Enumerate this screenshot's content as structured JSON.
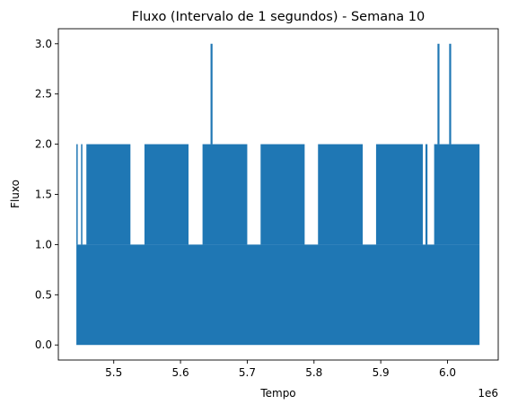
{
  "chart_data": {
    "type": "line",
    "title": "Fluxo (Intervalo de 1 segundos) - Semana 10",
    "xlabel": "Tempo",
    "ylabel": "Fluxo",
    "x_offset_label": "1e6",
    "xlim": [
      5417000,
      6076000
    ],
    "ylim": [
      -0.15,
      3.15
    ],
    "x_ticks": [
      5500000,
      5600000,
      5700000,
      5800000,
      5900000,
      6000000
    ],
    "x_tick_labels": [
      "5.5",
      "5.6",
      "5.7",
      "5.8",
      "5.9",
      "6.0"
    ],
    "y_ticks": [
      0.0,
      0.5,
      1.0,
      1.5,
      2.0,
      2.5,
      3.0
    ],
    "y_tick_labels": [
      "0.0",
      "0.5",
      "1.0",
      "1.5",
      "2.0",
      "2.5",
      "3.0"
    ],
    "grid": false,
    "series_color": "#1f77b4",
    "series": [
      {
        "baseline_range": [
          5444000,
          6048000
        ],
        "baseline_max": 1,
        "bands_reaching_2": [
          [
            5444000,
            5446000
          ],
          [
            5451000,
            5453000
          ],
          [
            5459000,
            5525000
          ],
          [
            5546000,
            5612000
          ],
          [
            5633000,
            5700000
          ],
          [
            5720000,
            5786000
          ],
          [
            5806000,
            5873000
          ],
          [
            5893000,
            5963000
          ],
          [
            5967000,
            5970000
          ],
          [
            5980000,
            6048000
          ]
        ],
        "spikes_reaching_3": [
          5646500,
          5986500,
          6004000
        ]
      }
    ]
  }
}
